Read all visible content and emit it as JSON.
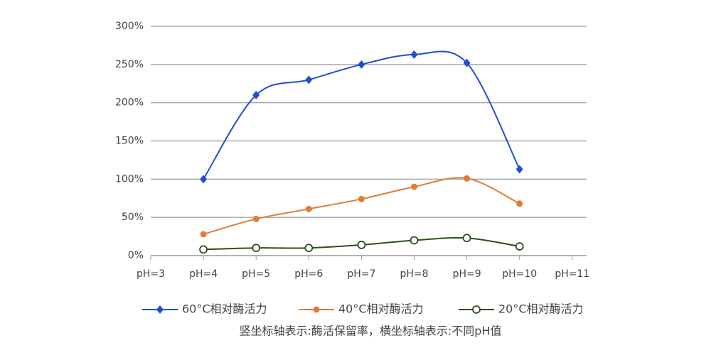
{
  "chart_data": {
    "type": "line",
    "categories": [
      "pH=3",
      "pH=4",
      "pH=5",
      "pH=6",
      "pH=7",
      "pH=8",
      "pH=9",
      "pH=10",
      "pH=11"
    ],
    "series": [
      {
        "name": "60°C相对酶活力",
        "color": "#1f4fd0",
        "marker": "diamond",
        "values": [
          null,
          100,
          210,
          230,
          250,
          263,
          252,
          113,
          null
        ]
      },
      {
        "name": "40°C相对酶活力",
        "color": "#e07b39",
        "marker": "circle",
        "values": [
          null,
          28,
          48,
          61,
          74,
          90,
          101,
          68,
          null
        ]
      },
      {
        "name": "20°C相对酶活力",
        "color": "#2e4d1f",
        "marker": "open-circle",
        "values": [
          null,
          8,
          10,
          10,
          14,
          20,
          23,
          12,
          null
        ]
      }
    ],
    "ylim": [
      0,
      300
    ],
    "yticks": [
      {
        "value": 0,
        "label": "0%"
      },
      {
        "value": 50,
        "label": "50%"
      },
      {
        "value": 100,
        "label": "100%"
      },
      {
        "value": 150,
        "label": "150%"
      },
      {
        "value": 200,
        "label": "200%"
      },
      {
        "value": 250,
        "label": "250%"
      },
      {
        "value": 300,
        "label": "300%"
      }
    ],
    "grid": true,
    "legend": "bottom",
    "caption": "竖坐标轴表示:酶活保留率，横坐标轴表示:不同pH值"
  }
}
